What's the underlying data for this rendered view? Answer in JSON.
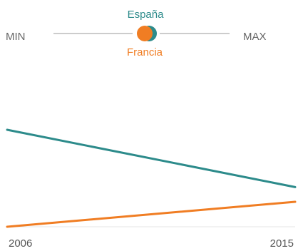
{
  "chart_data": {
    "type": "line",
    "x": [
      "2006",
      "2015"
    ],
    "series": [
      {
        "name": "España",
        "color": "#2d8b8b",
        "values": [
          0.66,
          0.27
        ]
      },
      {
        "name": "Francia",
        "color": "#f07d23",
        "values": [
          0.0,
          0.17
        ]
      }
    ],
    "ylim": [
      0,
      1
    ],
    "grid": false,
    "scale": {
      "min_label": "MIN",
      "max_label": "MAX"
    },
    "legend_position": "top-center",
    "x_tick_labels": [
      "2006",
      "2015"
    ]
  }
}
